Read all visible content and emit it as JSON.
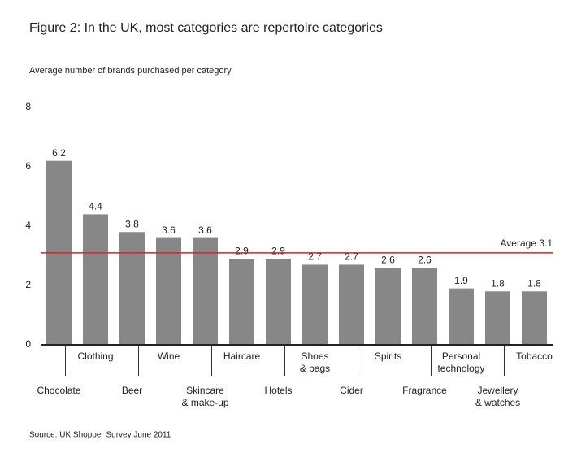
{
  "chart_data": {
    "type": "bar",
    "title": "Figure 2: In the UK, most categories are repertoire categories",
    "subtitle": "Average number of brands purchased per category",
    "categories": [
      "Chocolate",
      "Clothing",
      "Beer",
      "Wine",
      "Skincare\n& make-up",
      "Haircare",
      "Hotels",
      "Shoes\n& bags",
      "Cider",
      "Spirits",
      "Fragrance",
      "Personal\ntechnology",
      "Jewellery\n& watches",
      "Tobacco"
    ],
    "values": [
      6.2,
      4.4,
      3.8,
      3.6,
      3.6,
      2.9,
      2.9,
      2.7,
      2.7,
      2.6,
      2.6,
      1.9,
      1.8,
      1.8
    ],
    "color": "#878787",
    "average": 3.1,
    "average_label": "Average 3.1",
    "average_color": "#d2261e",
    "ylim": [
      0,
      8
    ],
    "yticks": [
      0,
      2,
      4,
      6,
      8
    ],
    "source": "Source: UK Shopper Survey June 2011"
  }
}
